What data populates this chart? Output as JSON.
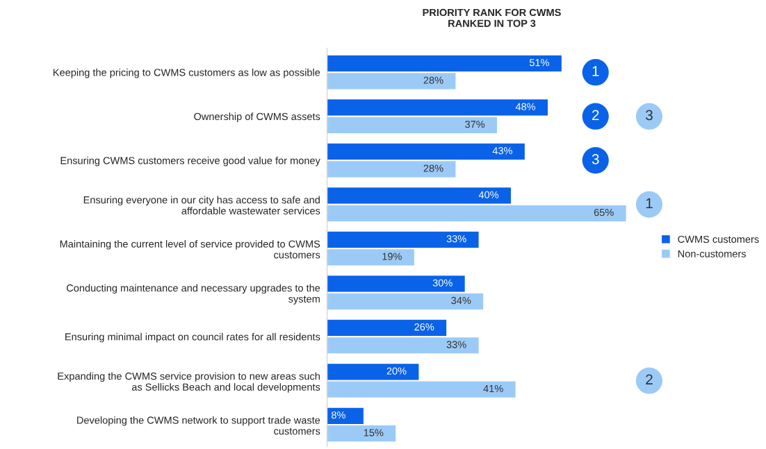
{
  "chart_data": {
    "type": "bar",
    "orientation": "horizontal",
    "title": "PRIORITY RANK FOR CWMS\nRANKED IN TOP 3",
    "categories": [
      "Keeping the pricing to CWMS customers as low as possible",
      "Ownership of CWMS assets",
      "Ensuring CWMS customers receive good value for money",
      "Ensuring everyone in our city has access to safe and\naffordable wastewater services",
      "Maintaining the current level of service provided to CWMS\ncustomers",
      "Conducting maintenance and necessary upgrades to the\nsystem",
      "Ensuring minimal impact on council rates for all residents",
      "Expanding the CWMS service provision to new areas such\nas Sellicks Beach and local developments",
      "Developing the CWMS network to support trade waste\ncustomers"
    ],
    "series": [
      {
        "name": "CWMS customers",
        "color": "#0a62e8",
        "values": [
          51,
          48,
          43,
          40,
          33,
          30,
          26,
          20,
          8
        ],
        "value_labels": [
          "51%",
          "48%",
          "43%",
          "40%",
          "33%",
          "30%",
          "26%",
          "20%",
          "8%"
        ]
      },
      {
        "name": "Non-customers",
        "color": "#9ccaf6",
        "values": [
          28,
          37,
          28,
          65,
          19,
          34,
          33,
          41,
          15
        ],
        "value_labels": [
          "28%",
          "37%",
          "28%",
          "65%",
          "19%",
          "34%",
          "33%",
          "41%",
          "15%"
        ]
      }
    ],
    "tick_labels": "y",
    "legend": "right",
    "grid": false,
    "annotations": [
      "1",
      "2",
      "3",
      "1",
      "2",
      "3"
    ]
  }
}
